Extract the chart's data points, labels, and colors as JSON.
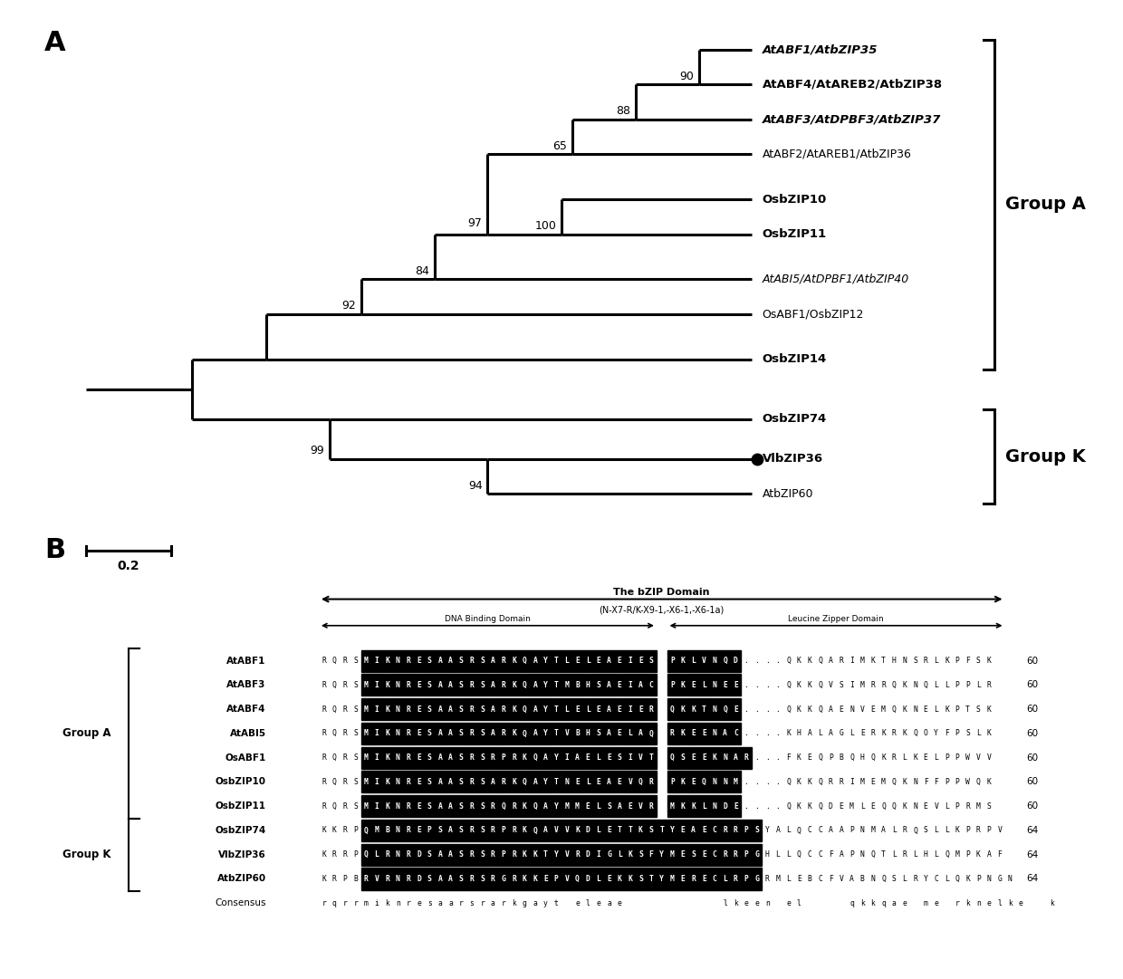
{
  "panel_A_label": "A",
  "panel_B_label": "B",
  "scale_bar_value": "0.2",
  "tree_taxa": [
    "AtABF1/AtbZIP35",
    "AtABF4/AtAREB2/AtbZIP38",
    "AtABF3/AtDPBF3/AtbZIP37",
    "AtABF2/AtAREB1/AtbZIP36",
    "OsbZIP10",
    "OsbZIP11",
    "AtABI5/AtDPBF1/AtbZIP40",
    "OsABF1/OsbZIP12",
    "OsbZIP14",
    "OsbZIP74",
    "VlbZIP36",
    "AtbZIP60"
  ],
  "group_A_label": "Group A",
  "group_K_label": "Group K",
  "bg_color": "#ffffff",
  "text_color": "#000000",
  "domain_labels": {
    "bzip_domain": "The bZIP Domain",
    "bzip_formula": "(N-X7-R/K-X9-1,-X6-1,-X6-1a)",
    "dna_binding": "DNA Binding Domain",
    "leucine_zipper": "Leucine Zipper Domain"
  }
}
